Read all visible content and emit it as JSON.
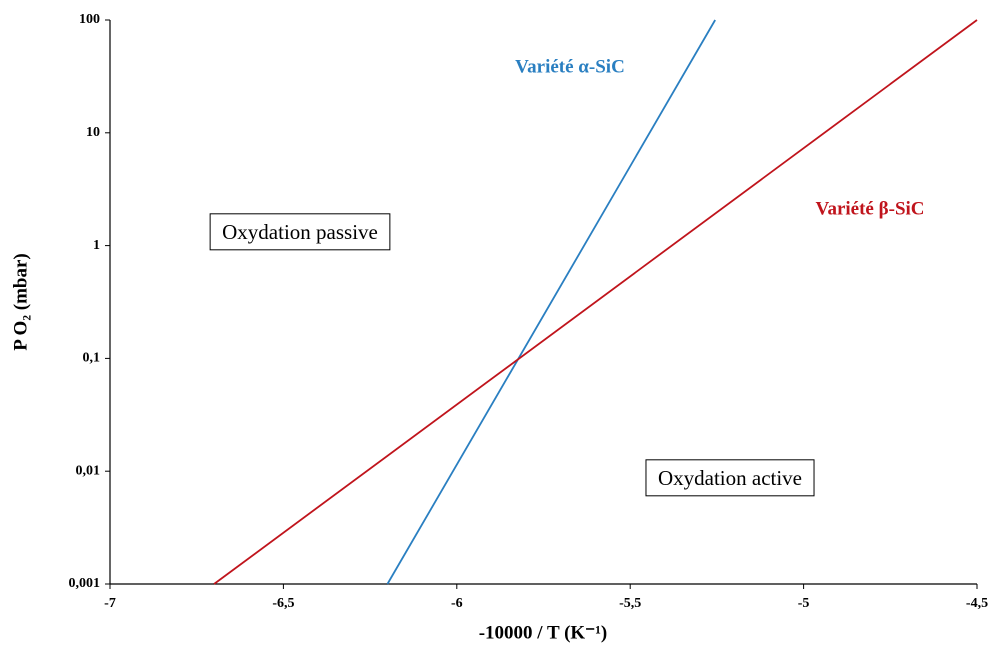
{
  "chart_data": {
    "type": "line",
    "xlabel": "-10000 / T (K⁻¹)",
    "ylabel": "P O₂ (mbar)",
    "series": [
      {
        "name": "Variété α-SiC",
        "color": "#2a7fc1",
        "x": [
          -6.2,
          -5.255
        ],
        "values": [
          0.001,
          100
        ]
      },
      {
        "name": "Variété β-SiC",
        "color": "#c0141c",
        "x": [
          -6.7,
          -4.5
        ],
        "values": [
          0.001,
          100
        ]
      }
    ],
    "annotations": [
      "Oxydation passive",
      "Oxydation active"
    ],
    "xlim": [
      -7,
      -4.5
    ],
    "xticks": [
      -7,
      {
        "value": -6.5,
        "label": "-6,5"
      },
      -6,
      {
        "value": -5.5,
        "label": "-5,5"
      },
      -5,
      {
        "value": -4.5,
        "label": "-4,5"
      }
    ],
    "ylim": [
      0.001,
      100
    ],
    "yticks": [
      {
        "value": 0.001,
        "label": "0,001"
      },
      {
        "value": 0.01,
        "label": "0,01"
      },
      {
        "value": 0.1,
        "label": "0,1"
      },
      1,
      10,
      100
    ],
    "yscale": "log",
    "grid": false
  }
}
